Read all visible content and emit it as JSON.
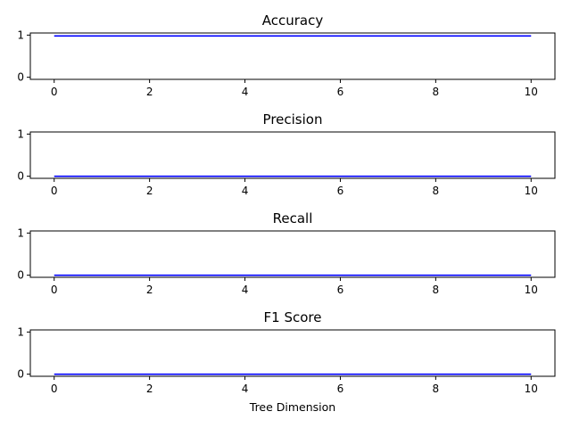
{
  "chart_data": [
    {
      "type": "line",
      "title": "Accuracy",
      "x": [
        0,
        1,
        2,
        3,
        4,
        5,
        6,
        7,
        8,
        9,
        10
      ],
      "series": [
        {
          "values": [
            0.98,
            0.98,
            0.98,
            0.98,
            0.98,
            0.98,
            0.98,
            0.98,
            0.98,
            0.98,
            0.98
          ]
        }
      ],
      "xticks": [
        "0",
        "2",
        "4",
        "6",
        "8",
        "10"
      ],
      "yticks": [
        "0",
        "1"
      ],
      "xlabel": "",
      "ylabel": "",
      "xlim": [
        -0.5,
        10.5
      ],
      "ylim": [
        -0.05,
        1.05
      ],
      "grid": false
    },
    {
      "type": "line",
      "title": "Precision",
      "x": [
        0,
        1,
        2,
        3,
        4,
        5,
        6,
        7,
        8,
        9,
        10
      ],
      "series": [
        {
          "values": [
            0,
            0,
            0,
            0,
            0,
            0,
            0,
            0,
            0,
            0,
            0
          ]
        }
      ],
      "xticks": [
        "0",
        "2",
        "4",
        "6",
        "8",
        "10"
      ],
      "yticks": [
        "0",
        "1"
      ],
      "xlabel": "",
      "ylabel": "",
      "xlim": [
        -0.5,
        10.5
      ],
      "ylim": [
        -0.05,
        1.05
      ],
      "grid": false
    },
    {
      "type": "line",
      "title": "Recall",
      "x": [
        0,
        1,
        2,
        3,
        4,
        5,
        6,
        7,
        8,
        9,
        10
      ],
      "series": [
        {
          "values": [
            0,
            0,
            0,
            0,
            0,
            0,
            0,
            0,
            0,
            0,
            0
          ]
        }
      ],
      "xticks": [
        "0",
        "2",
        "4",
        "6",
        "8",
        "10"
      ],
      "yticks": [
        "0",
        "1"
      ],
      "xlabel": "",
      "ylabel": "",
      "xlim": [
        -0.5,
        10.5
      ],
      "ylim": [
        -0.05,
        1.05
      ],
      "grid": false
    },
    {
      "type": "line",
      "title": "F1 Score",
      "x": [
        0,
        1,
        2,
        3,
        4,
        5,
        6,
        7,
        8,
        9,
        10
      ],
      "series": [
        {
          "values": [
            0,
            0,
            0,
            0,
            0,
            0,
            0,
            0,
            0,
            0,
            0
          ]
        }
      ],
      "xticks": [
        "0",
        "2",
        "4",
        "6",
        "8",
        "10"
      ],
      "yticks": [
        "0",
        "1"
      ],
      "xlabel": "Tree Dimension",
      "ylabel": "",
      "xlim": [
        -0.5,
        10.5
      ],
      "ylim": [
        -0.05,
        1.05
      ],
      "grid": false
    }
  ],
  "colors": {
    "series": "#0000ff",
    "axes": "#000000",
    "background": "#ffffff"
  }
}
